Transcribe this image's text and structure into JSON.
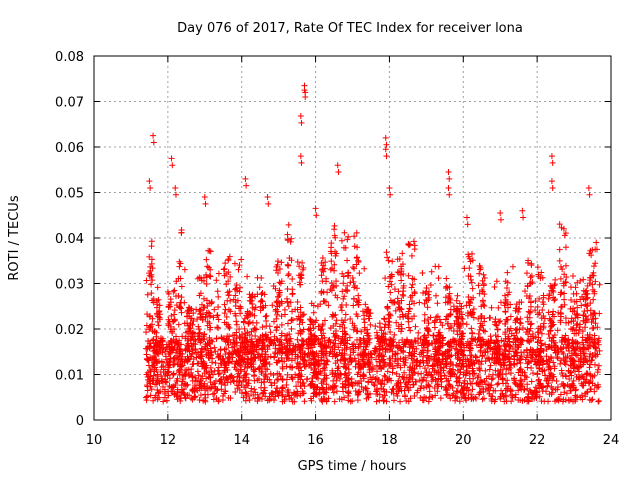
{
  "chart_data": {
    "type": "scatter",
    "title": "Day 076 of 2017, Rate Of TEC Index for receiver lona",
    "xlabel": "GPS time / hours",
    "ylabel": "ROTI / TECUs",
    "xlim": [
      10,
      24
    ],
    "ylim": [
      0,
      0.08
    ],
    "xticks": [
      "10",
      "12",
      "14",
      "16",
      "18",
      "20",
      "22",
      "24"
    ],
    "yticks": [
      "0",
      "0.01",
      "0.02",
      "0.03",
      "0.04",
      "0.05",
      "0.06",
      "0.07",
      "0.08"
    ],
    "grid": true,
    "marker": "plus",
    "color": "#ff0000",
    "x_range_data": [
      11.4,
      23.7
    ],
    "peaks": [
      {
        "x": 11.6,
        "y": 0.0625
      },
      {
        "x": 11.5,
        "y": 0.0525
      },
      {
        "x": 12.1,
        "y": 0.0575
      },
      {
        "x": 12.2,
        "y": 0.051
      },
      {
        "x": 13.0,
        "y": 0.049
      },
      {
        "x": 14.1,
        "y": 0.053
      },
      {
        "x": 14.7,
        "y": 0.049
      },
      {
        "x": 15.7,
        "y": 0.0735
      },
      {
        "x": 15.7,
        "y": 0.0725
      },
      {
        "x": 15.6,
        "y": 0.0668
      },
      {
        "x": 15.6,
        "y": 0.058
      },
      {
        "x": 16.0,
        "y": 0.0465
      },
      {
        "x": 16.6,
        "y": 0.056
      },
      {
        "x": 17.9,
        "y": 0.062
      },
      {
        "x": 17.9,
        "y": 0.0595
      },
      {
        "x": 18.0,
        "y": 0.051
      },
      {
        "x": 19.6,
        "y": 0.0545
      },
      {
        "x": 19.6,
        "y": 0.051
      },
      {
        "x": 20.1,
        "y": 0.0445
      },
      {
        "x": 21.0,
        "y": 0.0455
      },
      {
        "x": 21.6,
        "y": 0.046
      },
      {
        "x": 22.4,
        "y": 0.058
      },
      {
        "x": 22.4,
        "y": 0.0525
      },
      {
        "x": 23.4,
        "y": 0.051
      },
      {
        "x": 23.6,
        "y": 0.039
      }
    ]
  }
}
